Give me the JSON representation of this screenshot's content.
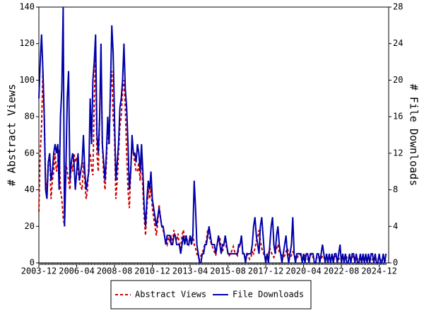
{
  "chart_data": {
    "type": "line",
    "y_label": "# Abstract Views",
    "y2_label": "# File Downloads",
    "x": [
      "2003-12",
      "2004-01",
      "2004-02",
      "2004-03",
      "2004-04",
      "2004-05",
      "2004-06",
      "2004-07",
      "2004-08",
      "2004-09",
      "2004-10",
      "2004-11",
      "2004-12",
      "2005-01",
      "2005-02",
      "2005-03",
      "2005-04",
      "2005-05",
      "2005-06",
      "2005-07",
      "2005-08",
      "2005-09",
      "2005-10",
      "2005-11",
      "2005-12",
      "2006-01",
      "2006-02",
      "2006-03",
      "2006-04",
      "2006-05",
      "2006-06",
      "2006-07",
      "2006-08",
      "2006-09",
      "2006-10",
      "2006-11",
      "2006-12",
      "2007-01",
      "2007-02",
      "2007-03",
      "2007-04",
      "2007-05",
      "2007-06",
      "2007-07",
      "2007-08",
      "2007-09",
      "2007-10",
      "2007-11",
      "2007-12",
      "2008-01",
      "2008-02",
      "2008-03",
      "2008-04",
      "2008-05",
      "2008-06",
      "2008-07",
      "2008-08",
      "2008-09",
      "2008-10",
      "2008-11",
      "2008-12",
      "2009-01",
      "2009-02",
      "2009-03",
      "2009-04",
      "2009-05",
      "2009-06",
      "2009-07",
      "2009-08",
      "2009-09",
      "2009-10",
      "2009-11",
      "2009-12",
      "2010-01",
      "2010-02",
      "2010-03",
      "2010-04",
      "2010-05",
      "2010-06",
      "2010-07",
      "2010-08",
      "2010-09",
      "2010-10",
      "2010-11",
      "2010-12",
      "2011-01",
      "2011-02",
      "2011-03",
      "2011-04",
      "2011-05",
      "2011-06",
      "2011-07",
      "2011-08",
      "2011-09",
      "2011-10",
      "2011-11",
      "2011-12",
      "2012-01",
      "2012-02",
      "2012-03",
      "2012-04",
      "2012-05",
      "2012-06",
      "2012-07",
      "2012-08",
      "2012-09",
      "2012-10",
      "2012-11",
      "2012-12",
      "2013-01",
      "2013-02",
      "2013-03",
      "2013-04",
      "2013-05",
      "2013-06",
      "2013-07",
      "2013-08",
      "2013-09",
      "2013-10",
      "2013-11",
      "2013-12",
      "2014-01",
      "2014-02",
      "2014-03",
      "2014-04",
      "2014-05",
      "2014-06",
      "2014-07",
      "2014-08",
      "2014-09",
      "2014-10",
      "2014-11",
      "2014-12",
      "2015-01",
      "2015-02",
      "2015-03",
      "2015-04",
      "2015-05",
      "2015-06",
      "2015-07",
      "2015-08",
      "2015-09",
      "2015-10",
      "2015-11",
      "2015-12",
      "2016-01",
      "2016-02",
      "2016-03",
      "2016-04",
      "2016-05",
      "2016-06",
      "2016-07",
      "2016-08",
      "2016-09",
      "2016-10",
      "2016-11",
      "2016-12",
      "2017-01",
      "2017-02",
      "2017-03",
      "2017-04",
      "2017-05",
      "2017-06",
      "2017-07",
      "2017-08",
      "2017-09",
      "2017-10",
      "2017-11",
      "2017-12",
      "2018-01",
      "2018-02",
      "2018-03",
      "2018-04",
      "2018-05",
      "2018-06",
      "2018-07",
      "2018-08",
      "2018-09",
      "2018-10",
      "2018-11",
      "2018-12",
      "2019-01",
      "2019-02",
      "2019-03",
      "2019-04",
      "2019-05",
      "2019-06",
      "2019-07",
      "2019-08",
      "2019-09",
      "2019-10",
      "2019-11",
      "2019-12",
      "2020-01",
      "2020-02",
      "2020-03",
      "2020-04",
      "2020-05",
      "2020-06",
      "2020-07",
      "2020-08",
      "2020-09",
      "2020-10",
      "2020-11",
      "2020-12",
      "2021-01",
      "2021-02",
      "2021-03",
      "2021-04",
      "2021-05",
      "2021-06",
      "2021-07",
      "2021-08",
      "2021-09",
      "2021-10",
      "2021-11",
      "2021-12",
      "2022-01",
      "2022-02",
      "2022-03",
      "2022-04",
      "2022-05",
      "2022-06",
      "2022-07",
      "2022-08",
      "2022-09",
      "2022-10",
      "2022-11",
      "2022-12",
      "2023-01",
      "2023-02",
      "2023-03",
      "2023-04",
      "2023-05",
      "2023-06",
      "2023-07",
      "2023-08",
      "2023-09",
      "2023-10",
      "2023-11",
      "2023-12",
      "2024-01",
      "2024-02",
      "2024-03",
      "2024-04",
      "2024-05",
      "2024-06",
      "2024-07",
      "2024-08",
      "2024-09",
      "2024-10",
      "2024-11",
      "2024-12",
      "2025-01",
      "2025-02",
      "2025-03",
      "2025-04",
      "2025-05"
    ],
    "series": [
      {
        "name": "Abstract Views",
        "color": "#cc0000",
        "line_style": "dashed",
        "values": [
          28,
          60,
          75,
          105,
          80,
          45,
          40,
          55,
          60,
          35,
          45,
          50,
          60,
          50,
          55,
          62,
          40,
          35,
          25,
          20,
          55,
          50,
          45,
          40,
          55,
          50,
          60,
          55,
          58,
          50,
          45,
          42,
          40,
          55,
          45,
          35,
          40,
          55,
          60,
          52,
          48,
          90,
          112,
          60,
          50,
          80,
          110,
          65,
          48,
          40,
          55,
          75,
          65,
          95,
          105,
          80,
          70,
          35,
          45,
          60,
          75,
          80,
          95,
          100,
          85,
          60,
          40,
          30,
          50,
          65,
          60,
          55,
          50,
          50,
          55,
          45,
          60,
          40,
          25,
          15,
          30,
          40,
          35,
          42,
          30,
          25,
          20,
          15,
          22,
          32,
          25,
          20,
          18,
          15,
          12,
          10,
          14,
          12,
          15,
          10,
          18,
          14,
          12,
          16,
          10,
          8,
          15,
          18,
          12,
          15,
          12,
          10,
          14,
          12,
          16,
          10,
          8,
          5,
          3,
          2,
          4,
          5,
          8,
          10,
          12,
          18,
          15,
          12,
          10,
          8,
          6,
          4,
          10,
          12,
          14,
          8,
          6,
          10,
          12,
          8,
          6,
          4,
          5,
          7,
          9,
          6,
          5,
          4,
          8,
          10,
          14,
          6,
          4,
          3,
          5,
          4,
          2,
          3,
          6,
          5,
          8,
          12,
          14,
          18,
          12,
          8,
          6,
          4,
          3,
          4,
          5,
          8,
          6,
          4,
          3,
          5,
          8,
          10,
          6,
          5,
          4,
          3,
          4,
          6,
          8,
          5,
          3,
          4,
          6,
          5,
          3,
          2,
          4,
          5,
          4,
          3,
          2,
          4,
          3,
          2,
          3,
          4,
          5,
          3,
          2,
          2,
          3,
          4,
          3,
          2,
          4,
          3,
          2,
          3,
          2,
          3,
          2,
          2,
          3,
          2,
          4,
          3,
          2,
          3,
          2,
          3,
          2,
          4,
          3,
          2,
          3,
          2,
          3,
          4,
          2,
          1,
          2,
          3,
          2,
          1,
          2,
          2,
          1,
          2,
          3,
          2,
          1,
          2,
          3,
          2,
          1,
          2,
          3,
          2,
          1,
          3,
          2,
          1
        ]
      },
      {
        "name": "File Downloads",
        "color": "#0000aa",
        "line_style": "solid",
        "axis": "y2",
        "values": [
          18,
          22,
          25,
          21,
          16,
          8,
          7,
          11,
          12,
          9,
          10,
          12,
          13,
          12,
          13,
          8,
          16,
          19,
          28,
          4,
          10,
          18,
          21,
          9,
          11,
          12,
          11,
          8,
          10,
          12,
          9,
          10,
          11,
          14,
          10,
          8,
          9,
          10,
          18,
          13,
          20,
          22,
          25,
          14,
          12,
          16,
          24,
          13,
          11,
          9,
          12,
          16,
          13,
          19,
          26,
          23,
          16,
          9,
          11,
          13,
          17,
          18,
          20,
          24,
          19,
          17,
          13,
          8,
          10,
          14,
          12,
          12,
          11,
          13,
          12,
          10,
          13,
          10,
          6,
          4,
          7,
          9,
          8,
          10,
          7,
          6,
          5,
          4,
          5,
          6,
          5,
          4,
          4,
          3,
          2,
          3,
          3,
          3,
          2,
          2,
          3,
          3,
          2,
          2,
          2,
          1,
          2,
          3,
          2,
          3,
          2,
          2,
          3,
          2,
          3,
          9,
          6,
          2,
          1,
          0,
          0,
          1,
          1,
          2,
          2,
          3,
          4,
          3,
          2,
          2,
          2,
          1,
          2,
          3,
          2,
          1,
          2,
          2,
          3,
          2,
          1,
          1,
          1,
          1,
          1,
          1,
          1,
          1,
          2,
          2,
          3,
          1,
          1,
          0,
          1,
          1,
          1,
          1,
          2,
          4,
          5,
          3,
          2,
          1,
          4,
          5,
          3,
          1,
          0,
          1,
          0,
          2,
          4,
          5,
          2,
          1,
          3,
          4,
          2,
          1,
          0,
          1,
          2,
          3,
          1,
          0,
          1,
          2,
          5,
          1,
          0,
          1,
          1,
          1,
          1,
          0,
          1,
          0,
          1,
          1,
          0,
          1,
          1,
          1,
          0,
          0,
          1,
          1,
          0,
          1,
          2,
          1,
          0,
          1,
          0,
          1,
          0,
          1,
          0,
          1,
          1,
          0,
          1,
          2,
          0,
          1,
          0,
          1,
          0,
          0,
          1,
          0,
          1,
          1,
          0,
          1,
          0,
          0,
          1,
          0,
          1,
          0,
          1,
          0,
          1,
          0,
          1,
          1,
          0,
          1,
          0,
          0,
          1,
          0,
          0,
          1,
          0,
          1
        ]
      }
    ],
    "xlim": [
      "2003-12",
      "2025-07"
    ],
    "xticks": [
      "2003-12",
      "2006-04",
      "2008-08",
      "2010-12",
      "2013-04",
      "2015-08",
      "2017-12",
      "2020-04",
      "2022-08",
      "2024-12"
    ],
    "ylim": [
      0,
      140
    ],
    "yticks": [
      0,
      20,
      40,
      60,
      80,
      100,
      120,
      140
    ],
    "y2lim": [
      0,
      28
    ],
    "y2ticks": [
      0,
      4,
      8,
      12,
      16,
      20,
      24,
      28
    ],
    "legend": "bottom"
  }
}
